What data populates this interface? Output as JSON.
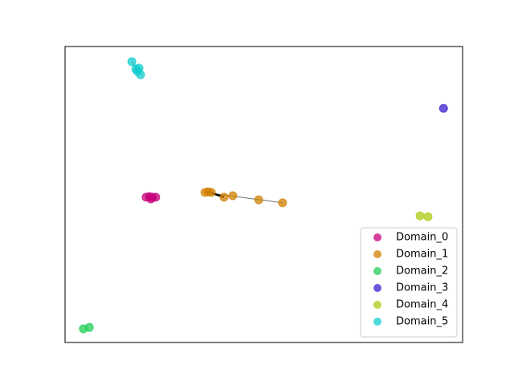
{
  "chart_data": {
    "type": "scatter",
    "xlim": [
      0,
      100
    ],
    "ylim": [
      0,
      100
    ],
    "legend": "lower right",
    "series": [
      {
        "name": "Domain_0",
        "color": "#c8007c",
        "x": [
          20.4,
          21.2,
          22.0,
          22.8,
          21.6
        ],
        "values": [
          49.1,
          49.3,
          49.1,
          49.1,
          48.5
        ]
      },
      {
        "name": "Domain_1",
        "color": "#d08000",
        "x": [
          35.2,
          36.0,
          36.8,
          40.0,
          42.2,
          48.7,
          54.7
        ],
        "values": [
          50.7,
          50.9,
          50.7,
          49.1,
          49.6,
          48.2,
          47.2
        ]
      },
      {
        "name": "Domain_2",
        "color": "#22cc55",
        "x": [
          4.6,
          6.1
        ],
        "values": [
          4.6,
          5.1
        ]
      },
      {
        "name": "Domain_3",
        "color": "#3b1fd0",
        "x": [
          95.2
        ],
        "values": [
          79.1
        ]
      },
      {
        "name": "Domain_4",
        "color": "#aacc11",
        "x": [
          89.3,
          91.3
        ],
        "values": [
          42.8,
          42.5
        ]
      },
      {
        "name": "Domain_5",
        "color": "#11cccc",
        "x": [
          16.8,
          17.8,
          18.6,
          18.2,
          19.0
        ],
        "values": [
          94.9,
          92.4,
          92.7,
          91.6,
          90.5
        ]
      }
    ]
  }
}
